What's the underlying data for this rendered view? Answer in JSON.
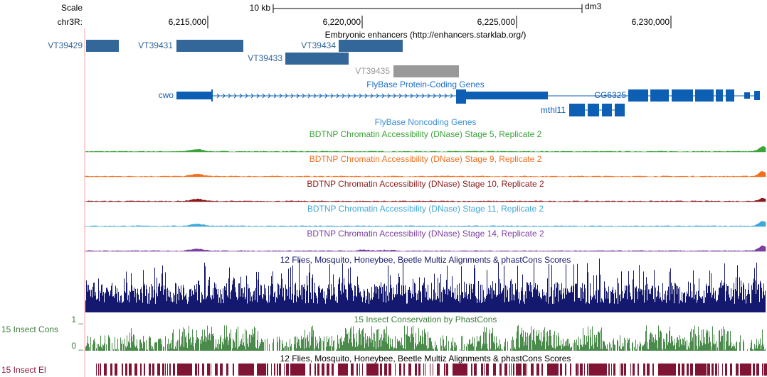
{
  "header": {
    "scale_label": "Scale",
    "scale_bar": "10 kb",
    "assembly": "dm3",
    "chromosome": "chr3R:",
    "positions": [
      "6,215,000",
      "6,220,000",
      "6,225,000",
      "6,230,000"
    ]
  },
  "enhancers": {
    "title": "Embryonic enhancers (http://enhancers.starklab.org/)",
    "features": [
      "VT39429",
      "VT39431",
      "VT39434",
      "VT39433",
      "VT39435"
    ]
  },
  "protein_coding": {
    "title": "FlyBase Protein-Coding Genes",
    "genes": [
      "cwo",
      "mthl11",
      "CG6325"
    ]
  },
  "noncoding": {
    "title": "FlyBase Noncoding Genes"
  },
  "dnase_tracks": [
    "BDTNP Chromatin Accessibility (DNase) Stage 5, Replicate 2",
    "BDTNP Chromatin Accessibility (DNase) Stage 9, Replicate 2",
    "BDTNP Chromatin Accessibility (DNase) Stage 10, Replicate 2",
    "BDTNP Chromatin Accessibility (DNase) Stage 11, Replicate 2",
    "BDTNP Chromatin Accessibility (DNase) Stage 14, Replicate 2"
  ],
  "multiz": {
    "title": "12 Flies, Mosquito, Honeybee, Beetle Multiz Alignments & phastCons Scores"
  },
  "phastcons": {
    "title": "15 Insect Conservation by PhastCons",
    "side_label": "15 Insect Cons",
    "max_label": "1 _",
    "min_label": "0 _"
  },
  "elements": {
    "title": "12 Flies, Mosquito, Honeybee, Beetle Multiz Alignments & phastCons Scores",
    "side_label": "15 Insect El"
  }
}
